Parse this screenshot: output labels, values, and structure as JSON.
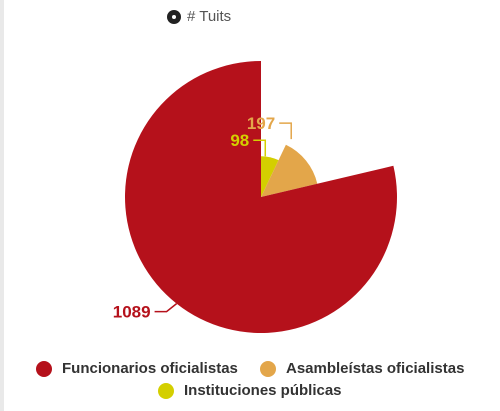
{
  "header_legend": {
    "label": "# Tuits",
    "icon": "radio-ring-icon"
  },
  "chart_data": {
    "type": "pie",
    "subtype": "variable-radius",
    "categories": [
      "Funcionarios oficialistas",
      "Asambleístas oficialistas",
      "Instituciones públicas"
    ],
    "values": [
      1089,
      197,
      98
    ],
    "colors": [
      "#b5111b",
      "#e3a64a",
      "#d4cf00"
    ],
    "series_label": "# Tuits"
  },
  "legend": [
    {
      "label": "Funcionarios oficialistas",
      "color": "#b5111b"
    },
    {
      "label": "Asambleístas oficialistas",
      "color": "#e3a64a"
    },
    {
      "label": "Instituciones públicas",
      "color": "#d4cf00"
    }
  ]
}
